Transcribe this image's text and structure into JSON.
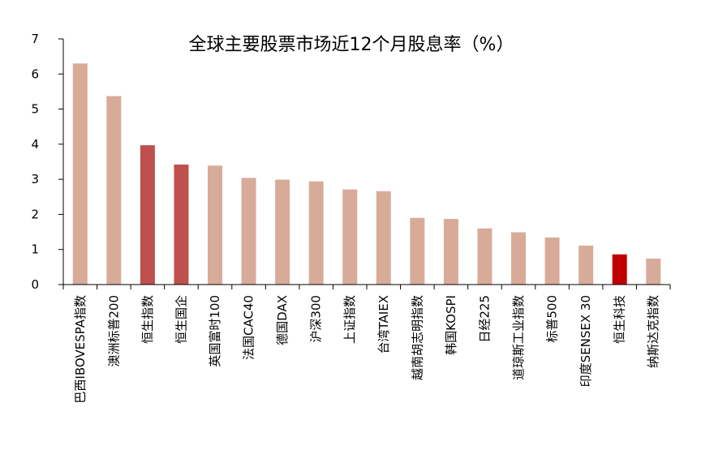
{
  "chart_data": {
    "type": "bar",
    "title": "全球主要股票市场近12个月股息率（%）",
    "xlabel": "",
    "ylabel": "",
    "ylim": [
      0,
      7
    ],
    "yticks": [
      "0",
      "1",
      "2",
      "3",
      "4",
      "5",
      "6",
      "7"
    ],
    "grid": false,
    "legend": "none",
    "categories": [
      "巴西IBOVESPA指数",
      "澳洲标普200",
      "恒生指数",
      "恒生国企",
      "英国富时100",
      "法国CAC40",
      "德国DAX",
      "沪深300",
      "上证指数",
      "台湾TAIEX",
      "越南胡志明指数",
      "韩国KOSPI",
      "日经225",
      "道琼斯工业指数",
      "标普500",
      "印度SENSEX 30",
      "恒生科技",
      "纳斯达克指数"
    ],
    "values": [
      6.3,
      5.37,
      3.97,
      3.42,
      3.39,
      3.04,
      2.99,
      2.94,
      2.71,
      2.66,
      1.9,
      1.87,
      1.6,
      1.49,
      1.34,
      1.11,
      0.86,
      0.74
    ],
    "colors": [
      "#d8ab99",
      "#d8ab99",
      "#c0504d",
      "#c0504d",
      "#d8ab99",
      "#d8ab99",
      "#d8ab99",
      "#d8ab99",
      "#d8ab99",
      "#d8ab99",
      "#d8ab99",
      "#d8ab99",
      "#d8ab99",
      "#d8ab99",
      "#d8ab99",
      "#d8ab99",
      "#c00000",
      "#d8ab99"
    ]
  }
}
